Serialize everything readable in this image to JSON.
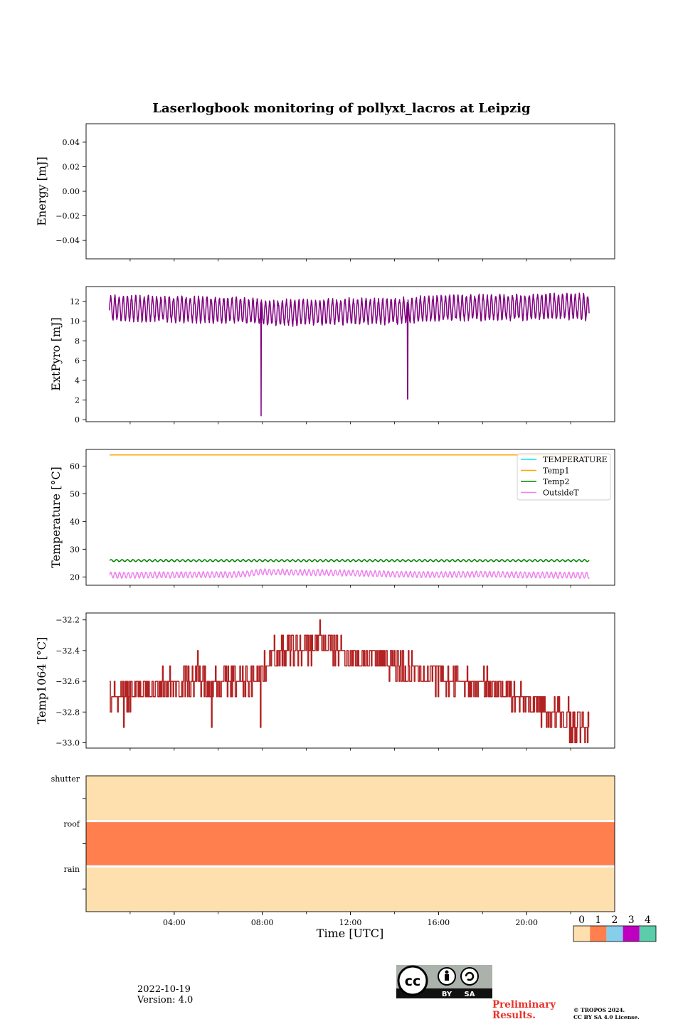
{
  "chart_data": {
    "title": "Laserlogbook monitoring of pollyxt_lacros at Leipzig",
    "xlabel": "Time [UTC]",
    "x_range": [
      "00:00",
      "24:00"
    ],
    "x_ticks": [
      "04:00",
      "08:00",
      "12:00",
      "16:00",
      "20:00"
    ],
    "panels": [
      {
        "name": "energy",
        "type": "line",
        "ylabel": "Energy [mJ]",
        "ylim": [
          -0.055,
          0.055
        ],
        "yticks": [
          "0.04",
          "0.02",
          "0.00",
          "−0.02",
          "−0.04"
        ],
        "ytick_values": [
          0.04,
          0.02,
          0.0,
          -0.02,
          -0.04
        ],
        "series": []
      },
      {
        "name": "extpyro",
        "type": "line",
        "ylabel": "ExtPyro [mJ]",
        "ylim": [
          -0.2,
          13.5
        ],
        "yticks": [
          "0",
          "2",
          "4",
          "6",
          "8",
          "10",
          "12"
        ],
        "ytick_values": [
          0,
          2,
          4,
          6,
          8,
          10,
          12
        ],
        "series": [
          {
            "color": "#800080",
            "t_start": 1.07,
            "t_end": 22.85,
            "baseline": [
              [
                1.07,
                11.3
              ],
              [
                4.0,
                11.2
              ],
              [
                7.0,
                11.1
              ],
              [
                8.5,
                10.8
              ],
              [
                10.0,
                10.9
              ],
              [
                12.0,
                11.0
              ],
              [
                14.0,
                11.0
              ],
              [
                16.0,
                11.3
              ],
              [
                18.0,
                11.4
              ],
              [
                20.0,
                11.4
              ],
              [
                22.0,
                11.5
              ],
              [
                22.85,
                11.4
              ]
            ],
            "amplitude": 1.2,
            "period_hours": 0.19,
            "dips": [
              {
                "t": 7.95,
                "value": 0.4
              },
              {
                "t": 14.6,
                "value": 2.1
              }
            ]
          }
        ]
      },
      {
        "name": "temperature",
        "type": "line",
        "ylabel": "Temperature [°C]",
        "ylim": [
          17.0,
          66.0
        ],
        "yticks": [
          "20",
          "30",
          "40",
          "50",
          "60"
        ],
        "ytick_values": [
          20,
          30,
          40,
          50,
          60
        ],
        "legend_position": "top-right",
        "series": [
          {
            "name": "TEMPERATURE",
            "color": "#00e5ee",
            "values": []
          },
          {
            "name": "Temp1",
            "color": "#ffa500",
            "t_start": 1.07,
            "t_end": 22.85,
            "level": 64.0,
            "amplitude": 0,
            "period_hours": 1
          },
          {
            "name": "Temp2",
            "color": "#008000",
            "t_start": 1.07,
            "t_end": 22.85,
            "level": 25.9,
            "amplitude": 0.35,
            "period_hours": 0.25
          },
          {
            "name": "OutsideT",
            "color": "#ee82ee",
            "t_start": 1.07,
            "t_end": 22.85,
            "baseline": [
              [
                1.07,
                20.6
              ],
              [
                7.0,
                20.9
              ],
              [
                8.0,
                21.8
              ],
              [
                10.0,
                21.6
              ],
              [
                12.0,
                21.4
              ],
              [
                14.0,
                21.0
              ],
              [
                16.0,
                20.8
              ],
              [
                18.0,
                21.0
              ],
              [
                20.0,
                20.7
              ],
              [
                22.85,
                20.6
              ]
            ],
            "amplitude": 1.0,
            "period_hours": 0.2
          }
        ]
      },
      {
        "name": "temp1064",
        "type": "step",
        "ylabel": "Temp1064 [°C]",
        "ylim": [
          -33.035,
          -32.155
        ],
        "yticks": [
          "−32.2",
          "−32.4",
          "−32.6",
          "−32.8",
          "−33.0"
        ],
        "ytick_values": [
          -32.2,
          -32.4,
          -32.6,
          -32.8,
          -33.0
        ],
        "series": [
          {
            "color": "#b22222",
            "t_start": 1.07,
            "t_end": 22.85,
            "step": 0.1,
            "baseline": [
              [
                1.07,
                -32.7
              ],
              [
                3.0,
                -32.65
              ],
              [
                4.5,
                -32.6
              ],
              [
                6.0,
                -32.6
              ],
              [
                7.5,
                -32.6
              ],
              [
                8.1,
                -32.5
              ],
              [
                8.5,
                -32.42
              ],
              [
                10.0,
                -32.38
              ],
              [
                11.0,
                -32.35
              ],
              [
                12.0,
                -32.45
              ],
              [
                13.5,
                -32.45
              ],
              [
                15.0,
                -32.55
              ],
              [
                17.0,
                -32.6
              ],
              [
                19.0,
                -32.65
              ],
              [
                20.0,
                -32.72
              ],
              [
                21.0,
                -32.8
              ],
              [
                22.0,
                -32.87
              ],
              [
                22.85,
                -32.9
              ]
            ],
            "spikes": [
              {
                "t": 1.7,
                "value": -32.9
              },
              {
                "t": 5.05,
                "value": -32.4
              },
              {
                "t": 5.7,
                "value": -32.9
              },
              {
                "t": 7.9,
                "value": -32.9
              },
              {
                "t": 10.6,
                "value": -32.2
              },
              {
                "t": 22.0,
                "value": -33.0
              },
              {
                "t": 21.9,
                "value": -32.7
              }
            ]
          }
        ]
      },
      {
        "name": "status",
        "type": "heatmap",
        "rows": [
          "shutter",
          "roof",
          "rain"
        ],
        "row_values": [
          0,
          1,
          0
        ],
        "colorbar": {
          "labels": [
            "0",
            "1",
            "2",
            "3",
            "4"
          ],
          "colors": [
            "#fde0ae",
            "#ff7f4f",
            "#87ceeb",
            "#c000c0",
            "#5bcdaa"
          ]
        }
      }
    ]
  },
  "footer": {
    "date": "2022-10-19",
    "version": "Version: 4.0",
    "preliminary_line1": "Preliminary",
    "preliminary_line2": "Results.",
    "copyright_line1": "© TROPOS 2024.",
    "copyright_line2": "CC BY SA 4.0 License.",
    "cc_label_by": "BY",
    "cc_label_sa": "SA",
    "cc_text": "cc"
  }
}
